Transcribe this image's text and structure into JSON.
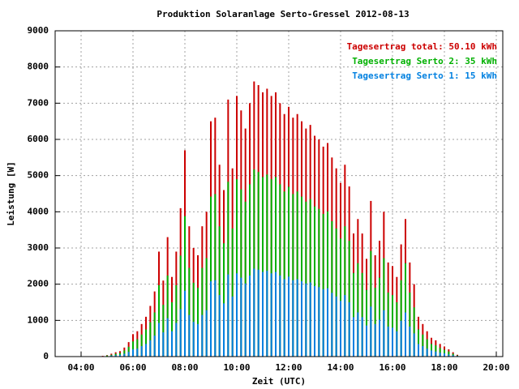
{
  "chart_data": {
    "type": "impulse",
    "title": "Produktion Solaranlage Serto-Gressel 2012-08-13",
    "xlabel": "Zeit (UTC)",
    "ylabel": "Leistung [W]",
    "x": [
      "04:50",
      "05:00",
      "05:10",
      "05:20",
      "05:30",
      "05:40",
      "05:50",
      "06:00",
      "06:10",
      "06:20",
      "06:30",
      "06:40",
      "06:50",
      "07:00",
      "07:10",
      "07:20",
      "07:30",
      "07:40",
      "07:50",
      "08:00",
      "08:10",
      "08:20",
      "08:30",
      "08:40",
      "08:50",
      "09:00",
      "09:10",
      "09:20",
      "09:30",
      "09:40",
      "09:50",
      "10:00",
      "10:10",
      "10:20",
      "10:30",
      "10:40",
      "10:50",
      "11:00",
      "11:10",
      "11:20",
      "11:30",
      "11:40",
      "11:50",
      "12:00",
      "12:10",
      "12:20",
      "12:30",
      "12:40",
      "12:50",
      "13:00",
      "13:10",
      "13:20",
      "13:30",
      "13:40",
      "13:50",
      "14:00",
      "14:10",
      "14:20",
      "14:30",
      "14:40",
      "14:50",
      "15:00",
      "15:10",
      "15:20",
      "15:30",
      "15:40",
      "15:50",
      "16:00",
      "16:10",
      "16:20",
      "16:30",
      "16:40",
      "16:50",
      "17:00",
      "17:10",
      "17:20",
      "17:30",
      "17:40",
      "17:50",
      "18:00",
      "18:10",
      "18:20",
      "18:30"
    ],
    "series": [
      {
        "name": "Tagesertrag total: 50.10 kWh",
        "color": "#cc0000",
        "values": [
          20,
          40,
          80,
          120,
          150,
          250,
          400,
          620,
          700,
          900,
          1100,
          1400,
          1800,
          2900,
          2100,
          3300,
          2200,
          2900,
          4100,
          5700,
          3600,
          3000,
          2800,
          3600,
          4000,
          6500,
          6600,
          5300,
          4600,
          7100,
          5200,
          7200,
          6800,
          6300,
          7000,
          7600,
          7500,
          7300,
          7400,
          7200,
          7300,
          7000,
          6700,
          6900,
          6600,
          6700,
          6500,
          6300,
          6400,
          6100,
          6000,
          5800,
          5900,
          5500,
          5200,
          4800,
          5300,
          4700,
          3400,
          3800,
          3400,
          2700,
          4300,
          2800,
          3200,
          4000,
          2600,
          2500,
          2200,
          3100,
          3800,
          2600,
          2000,
          1100,
          900,
          700,
          520,
          450,
          350,
          280,
          200,
          120,
          50
        ]
      },
      {
        "name": "Tagesertrag Serto 2: 35 kWh",
        "color": "#00b000",
        "values": [
          10,
          30,
          50,
          80,
          100,
          170,
          270,
          420,
          480,
          610,
          750,
          950,
          1220,
          1970,
          1430,
          2240,
          1500,
          1970,
          2790,
          3880,
          2450,
          2040,
          1900,
          2450,
          2720,
          4420,
          4490,
          3600,
          3130,
          4830,
          3540,
          4900,
          4620,
          4280,
          4760,
          5170,
          5100,
          4960,
          5030,
          4900,
          4960,
          4760,
          4560,
          4690,
          4490,
          4560,
          4420,
          4280,
          4350,
          4150,
          4080,
          3940,
          4010,
          3740,
          3540,
          3260,
          3600,
          3200,
          2310,
          2580,
          2310,
          1840,
          2920,
          1900,
          2180,
          2720,
          1770,
          1700,
          1500,
          2110,
          2580,
          1770,
          1360,
          750,
          610,
          480,
          350,
          310,
          240,
          190,
          140,
          80,
          30
        ]
      },
      {
        "name": "Tagesertrag Serto 1: 15 kWh",
        "color": "#0080e0",
        "values": [
          10,
          10,
          30,
          40,
          50,
          80,
          130,
          200,
          220,
          290,
          350,
          450,
          580,
          930,
          670,
          1060,
          700,
          930,
          1310,
          1820,
          1150,
          960,
          900,
          1150,
          1280,
          2080,
          2110,
          1700,
          1470,
          2270,
          1660,
          2300,
          2180,
          2020,
          2240,
          2430,
          2400,
          2340,
          2370,
          2300,
          2340,
          2240,
          2140,
          2210,
          2110,
          2140,
          2080,
          2020,
          2050,
          1950,
          1920,
          1860,
          1890,
          1760,
          1660,
          1540,
          1700,
          1500,
          1090,
          1220,
          1090,
          860,
          1380,
          900,
          1020,
          1280,
          830,
          800,
          700,
          990,
          1220,
          830,
          640,
          350,
          290,
          220,
          170,
          140,
          110,
          90,
          60,
          40,
          20
        ]
      }
    ],
    "xlim": [
      "03:00",
      "20:15"
    ],
    "xticks": [
      "04:00",
      "06:00",
      "08:00",
      "10:00",
      "12:00",
      "14:00",
      "16:00",
      "18:00",
      "20:00"
    ],
    "ylim": [
      0,
      9000
    ],
    "yticks": [
      0,
      1000,
      2000,
      3000,
      4000,
      5000,
      6000,
      7000,
      8000,
      9000
    ],
    "grid": true,
    "legend": "upper right"
  }
}
